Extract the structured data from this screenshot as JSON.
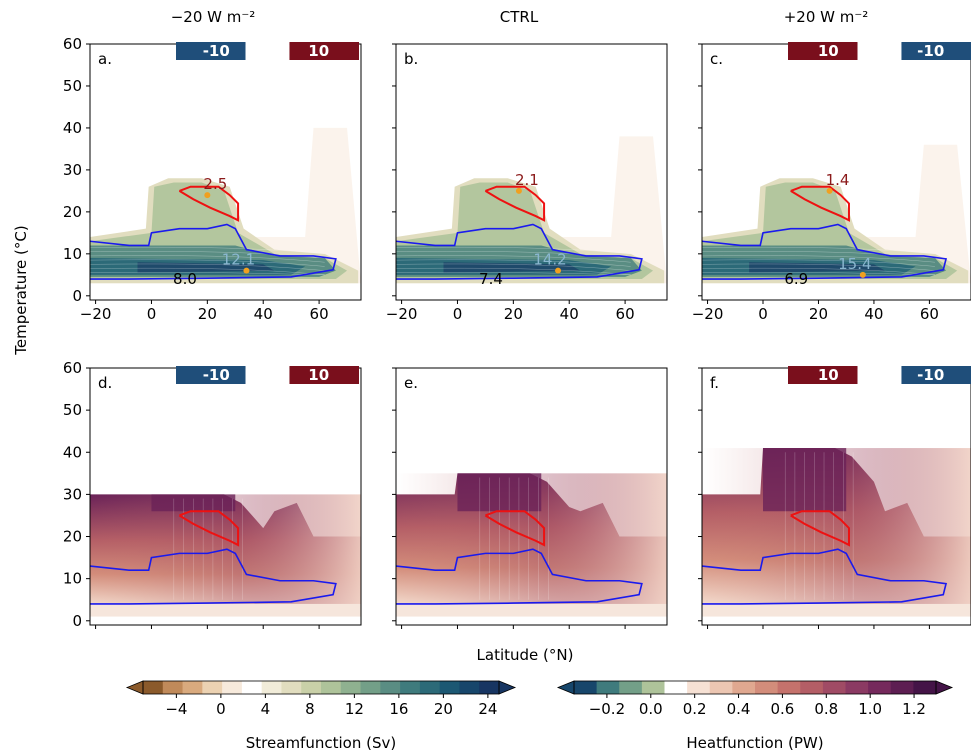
{
  "figure": {
    "column_titles": [
      "−20 W m⁻²",
      "CTRL",
      "+20 W m⁻²"
    ],
    "ylabel": "Temperature (°C)",
    "xlabel": "Latitude (°N)",
    "yticks": [
      0,
      10,
      20,
      30,
      40,
      50,
      60
    ],
    "xticks": [
      -20,
      0,
      20,
      40,
      60
    ],
    "panel_letters": [
      "a.",
      "b.",
      "c.",
      "d.",
      "e.",
      "f."
    ]
  },
  "chart_data": [
    {
      "type": "heatmap",
      "panel": "a.",
      "field": "Streamfunction",
      "xlim": [
        -22,
        75
      ],
      "ylim": [
        -1,
        60
      ],
      "inset_colorbar": [
        "-10",
        "10"
      ],
      "annotations": [
        {
          "text": "2.5",
          "color": "#8b1a1a",
          "x": 20,
          "y": 24
        },
        {
          "text": "12.1",
          "color": "#8ab7d0",
          "x": 34,
          "y": 6
        },
        {
          "text": "8.0",
          "color": "#000000",
          "x": 12,
          "y": 4
        }
      ],
      "contour_red": [
        [
          10,
          25
        ],
        [
          14,
          26
        ],
        [
          24,
          26
        ],
        [
          28,
          24
        ],
        [
          31,
          22
        ],
        [
          31,
          18
        ],
        [
          28,
          19
        ],
        [
          21,
          21
        ],
        [
          15,
          23
        ],
        [
          10,
          25
        ]
      ],
      "contour_blue": [
        [
          -22,
          13
        ],
        [
          -8,
          12
        ],
        [
          -1,
          12
        ],
        [
          0,
          15
        ],
        [
          10,
          16
        ],
        [
          20,
          16
        ],
        [
          27,
          17
        ],
        [
          30,
          16
        ],
        [
          34,
          11
        ],
        [
          46,
          9.5
        ],
        [
          58,
          9.5
        ],
        [
          66,
          8.8
        ],
        [
          65,
          6.2
        ],
        [
          50,
          4.5
        ],
        [
          20,
          4.2
        ],
        [
          -8,
          4
        ],
        [
          -22,
          4
        ]
      ],
      "markers": [
        [
          20,
          24
        ],
        [
          34,
          6
        ]
      ]
    },
    {
      "type": "heatmap",
      "panel": "b.",
      "field": "Streamfunction",
      "xlim": [
        -22,
        75
      ],
      "ylim": [
        -1,
        60
      ],
      "annotations": [
        {
          "text": "2.1",
          "color": "#8b1a1a",
          "x": 22,
          "y": 25
        },
        {
          "text": "14.2",
          "color": "#8ab7d0",
          "x": 36,
          "y": 6
        },
        {
          "text": "7.4",
          "color": "#000000",
          "x": 12,
          "y": 4
        }
      ],
      "contour_red": [
        [
          10,
          25
        ],
        [
          14,
          26
        ],
        [
          24,
          26
        ],
        [
          28,
          24
        ],
        [
          31,
          22
        ],
        [
          31,
          18
        ],
        [
          28,
          19
        ],
        [
          21,
          21
        ],
        [
          15,
          23
        ],
        [
          10,
          25
        ]
      ],
      "contour_blue": [
        [
          -22,
          13
        ],
        [
          -8,
          12
        ],
        [
          -1,
          12
        ],
        [
          0,
          15
        ],
        [
          10,
          16
        ],
        [
          20,
          16
        ],
        [
          27,
          17
        ],
        [
          30,
          16
        ],
        [
          34,
          11
        ],
        [
          46,
          9.5
        ],
        [
          58,
          9.5
        ],
        [
          66,
          8.8
        ],
        [
          65,
          6.2
        ],
        [
          50,
          4.5
        ],
        [
          20,
          4.2
        ],
        [
          -8,
          4
        ],
        [
          -22,
          4
        ]
      ],
      "markers": [
        [
          22,
          25
        ],
        [
          36,
          6
        ]
      ]
    },
    {
      "type": "heatmap",
      "panel": "c.",
      "field": "Streamfunction",
      "xlim": [
        -22,
        75
      ],
      "ylim": [
        -1,
        60
      ],
      "inset_colorbar": [
        "10",
        "-10"
      ],
      "annotations": [
        {
          "text": "1.4",
          "color": "#8b1a1a",
          "x": 24,
          "y": 25
        },
        {
          "text": "15.4",
          "color": "#8ab7d0",
          "x": 36,
          "y": 5
        },
        {
          "text": "6.9",
          "color": "#000000",
          "x": 12,
          "y": 4
        }
      ],
      "contour_red": [
        [
          10,
          25
        ],
        [
          14,
          26
        ],
        [
          24,
          26
        ],
        [
          28,
          24
        ],
        [
          31,
          22
        ],
        [
          31,
          18
        ],
        [
          28,
          19
        ],
        [
          21,
          21
        ],
        [
          15,
          23
        ],
        [
          10,
          25
        ]
      ],
      "contour_blue": [
        [
          -22,
          13
        ],
        [
          -8,
          12
        ],
        [
          -1,
          12
        ],
        [
          0,
          15
        ],
        [
          10,
          16
        ],
        [
          20,
          16
        ],
        [
          27,
          17
        ],
        [
          30,
          16
        ],
        [
          34,
          11
        ],
        [
          46,
          9.5
        ],
        [
          58,
          9.5
        ],
        [
          66,
          8.8
        ],
        [
          65,
          6.2
        ],
        [
          50,
          4.5
        ],
        [
          20,
          4.2
        ],
        [
          -8,
          4
        ],
        [
          -22,
          4
        ]
      ],
      "markers": [
        [
          24,
          25
        ],
        [
          36,
          5
        ]
      ]
    },
    {
      "type": "heatmap",
      "panel": "d.",
      "field": "Heatfunction",
      "xlim": [
        -22,
        75
      ],
      "ylim": [
        -1,
        60
      ],
      "inset_colorbar": [
        "-10",
        "10"
      ],
      "top": 30,
      "contour_red": [
        [
          10,
          25
        ],
        [
          14,
          26
        ],
        [
          24,
          26
        ],
        [
          28,
          24
        ],
        [
          31,
          22
        ],
        [
          31,
          18
        ],
        [
          28,
          19
        ],
        [
          21,
          21
        ],
        [
          15,
          23
        ],
        [
          10,
          25
        ]
      ],
      "contour_blue": [
        [
          -22,
          13
        ],
        [
          -8,
          12
        ],
        [
          -1,
          12
        ],
        [
          0,
          15
        ],
        [
          10,
          16
        ],
        [
          20,
          16
        ],
        [
          27,
          17
        ],
        [
          30,
          16
        ],
        [
          34,
          11
        ],
        [
          46,
          9.5
        ],
        [
          58,
          9.5
        ],
        [
          66,
          8.8
        ],
        [
          65,
          6.2
        ],
        [
          50,
          4.5
        ],
        [
          20,
          4.2
        ],
        [
          -8,
          4
        ],
        [
          -22,
          4
        ]
      ]
    },
    {
      "type": "heatmap",
      "panel": "e.",
      "field": "Heatfunction",
      "xlim": [
        -22,
        75
      ],
      "ylim": [
        -1,
        60
      ],
      "top": 35,
      "contour_red": [
        [
          10,
          25
        ],
        [
          14,
          26
        ],
        [
          24,
          26
        ],
        [
          28,
          24
        ],
        [
          31,
          22
        ],
        [
          31,
          18
        ],
        [
          28,
          19
        ],
        [
          21,
          21
        ],
        [
          15,
          23
        ],
        [
          10,
          25
        ]
      ],
      "contour_blue": [
        [
          -22,
          13
        ],
        [
          -8,
          12
        ],
        [
          -1,
          12
        ],
        [
          0,
          15
        ],
        [
          10,
          16
        ],
        [
          20,
          16
        ],
        [
          27,
          17
        ],
        [
          30,
          16
        ],
        [
          34,
          11
        ],
        [
          46,
          9.5
        ],
        [
          58,
          9.5
        ],
        [
          66,
          8.8
        ],
        [
          65,
          6.2
        ],
        [
          50,
          4.5
        ],
        [
          20,
          4.2
        ],
        [
          -8,
          4
        ],
        [
          -22,
          4
        ]
      ]
    },
    {
      "type": "heatmap",
      "panel": "f.",
      "field": "Heatfunction",
      "xlim": [
        -22,
        75
      ],
      "ylim": [
        -1,
        60
      ],
      "inset_colorbar": [
        "10",
        "-10"
      ],
      "top": 41,
      "contour_red": [
        [
          10,
          25
        ],
        [
          14,
          26
        ],
        [
          24,
          26
        ],
        [
          28,
          24
        ],
        [
          31,
          22
        ],
        [
          31,
          18
        ],
        [
          28,
          19
        ],
        [
          21,
          21
        ],
        [
          15,
          23
        ],
        [
          10,
          25
        ]
      ],
      "contour_blue": [
        [
          -22,
          13
        ],
        [
          -8,
          12
        ],
        [
          -1,
          12
        ],
        [
          0,
          15
        ],
        [
          10,
          16
        ],
        [
          20,
          16
        ],
        [
          27,
          17
        ],
        [
          30,
          16
        ],
        [
          34,
          11
        ],
        [
          46,
          9.5
        ],
        [
          58,
          9.5
        ],
        [
          66,
          8.8
        ],
        [
          65,
          6.2
        ],
        [
          50,
          4.5
        ],
        [
          20,
          4.2
        ],
        [
          -8,
          4
        ],
        [
          -22,
          4
        ]
      ]
    }
  ],
  "colorbars": [
    {
      "label": "Streamfunction (Sv)",
      "ticks": [
        "−4",
        "0",
        "4",
        "8",
        "12",
        "16",
        "20",
        "24"
      ],
      "tick_values": [
        -4,
        0,
        4,
        8,
        12,
        16,
        20,
        24
      ],
      "range": [
        -7,
        25
      ],
      "colors": [
        "#8b5a2b",
        "#c08a5a",
        "#d9aa7e",
        "#ecd2b2",
        "#f7eadc",
        "#ffffff",
        "#f1ecd9",
        "#e1ddbf",
        "#c9d0a8",
        "#aec39a",
        "#8fb190",
        "#739f88",
        "#5a8d83",
        "#3f7b7d",
        "#2c6a78",
        "#1c5873",
        "#17466b",
        "#173562"
      ]
    },
    {
      "label": "Heatfunction (PW)",
      "ticks": [
        "−0.2",
        "0.0",
        "0.2",
        "0.4",
        "0.6",
        "0.8",
        "1.0",
        "1.2"
      ],
      "tick_values": [
        -0.2,
        0,
        0.2,
        0.4,
        0.6,
        0.8,
        1.0,
        1.2
      ],
      "range": [
        -0.35,
        1.3
      ],
      "colors": [
        "#17466b",
        "#3f7b7d",
        "#739f88",
        "#aec39a",
        "#ffffff",
        "#f6e1d4",
        "#ecc6b2",
        "#e0a890",
        "#d38d7b",
        "#c5726c",
        "#b45e66",
        "#a04b65",
        "#8b3a63",
        "#75295c",
        "#5d1e52",
        "#441447"
      ]
    }
  ]
}
